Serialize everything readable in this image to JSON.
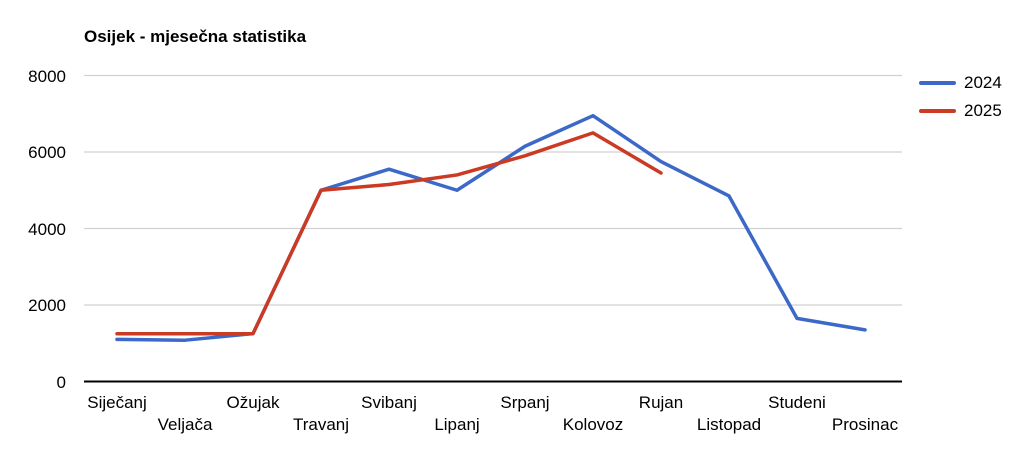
{
  "chart_data": {
    "type": "line",
    "title": "Osijek - mjesečna statistika",
    "categories": [
      "Siječanj",
      "Veljača",
      "Ožujak",
      "Travanj",
      "Svibanj",
      "Lipanj",
      "Srpanj",
      "Kolovoz",
      "Rujan",
      "Listopad",
      "Studeni",
      "Prosinac"
    ],
    "series": [
      {
        "name": "2024",
        "color": "#3C69C7",
        "values": [
          1100,
          1080,
          1250,
          5000,
          5550,
          5000,
          6150,
          6950,
          5750,
          4850,
          1650,
          1350
        ]
      },
      {
        "name": "2025",
        "color": "#CB3A23",
        "values": [
          1250,
          1250,
          1250,
          5000,
          5150,
          5400,
          5900,
          6500,
          5450
        ]
      }
    ],
    "xlabel": "",
    "ylabel": "",
    "ylim": [
      0,
      8000
    ],
    "yticks": [
      0,
      2000,
      4000,
      6000,
      8000
    ],
    "grid": true,
    "legend_position": "right-top",
    "colors": {
      "grid": "#D1D1D1",
      "axis": "#000000",
      "text": "#000000",
      "background": "#FFFFFF"
    }
  }
}
